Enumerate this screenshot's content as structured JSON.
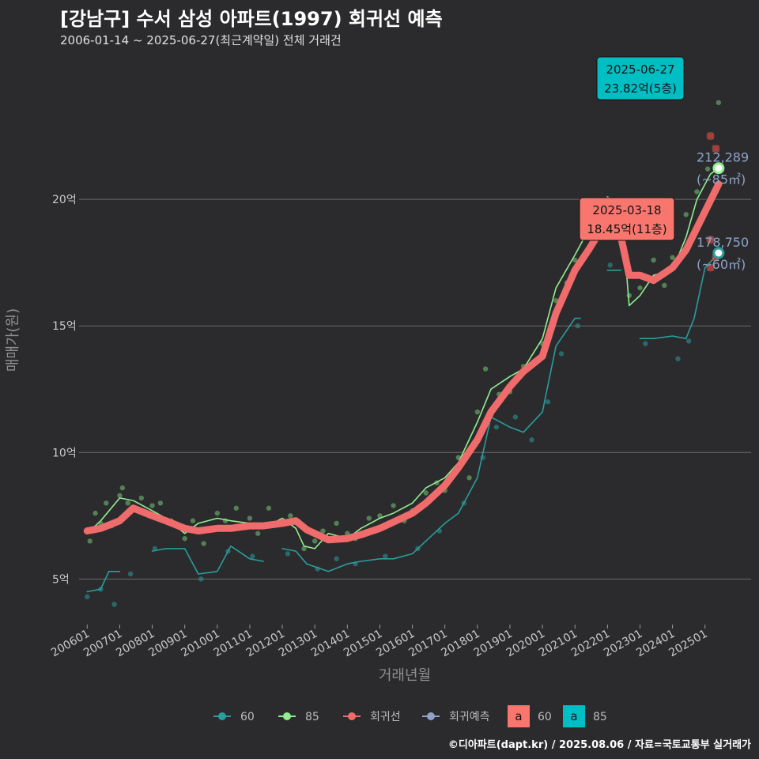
{
  "header": {
    "title": "[강남구] 수서 삼성 아파트(1997) 회귀선 예측",
    "subtitle": "2006-01-14 ~ 2025-06-27(최근계약일) 전체 거래건"
  },
  "caption": "©디아파트(dapt.kr) / 2025.08.06 / 자료=국토교통부 실거래가",
  "legend": {
    "items": [
      {
        "label": "60",
        "color": "#2a9d9d",
        "kind": "line"
      },
      {
        "label": "85",
        "color": "#90ee90",
        "kind": "line"
      },
      {
        "label": "회귀선",
        "color": "#f06b6b",
        "kind": "line"
      },
      {
        "label": "회귀예측",
        "color": "#8fa3c8",
        "kind": "line"
      }
    ],
    "fill_items": [
      {
        "glyph": "a",
        "label": "60",
        "color": "#f8766d"
      },
      {
        "glyph": "a",
        "label": "85",
        "color": "#00bfc4"
      }
    ]
  },
  "annotations": [
    {
      "date": "2025-06-27",
      "text": "23.82억(5층)",
      "color": "#00bfc4"
    },
    {
      "date": "2025-03-18",
      "text": "18.45억(11층)",
      "color": "#f8766d"
    }
  ],
  "end_labels": [
    {
      "value": "212,289",
      "unit": "(~85㎡)"
    },
    {
      "value": "178,750",
      "unit": "(~60㎡)"
    }
  ],
  "chart_data": {
    "type": "line",
    "xlabel": "거래년월",
    "ylabel": "매매가(원)",
    "x_range": [
      "2005-10",
      "2026-06"
    ],
    "ylim": [
      3.2,
      26
    ],
    "y_ticks": [
      {
        "v": 5,
        "label": "5억"
      },
      {
        "v": 10,
        "label": "10억"
      },
      {
        "v": 15,
        "label": "15억"
      },
      {
        "v": 20,
        "label": "20억"
      }
    ],
    "x_ticks": [
      "200601",
      "200701",
      "200801",
      "200901",
      "201001",
      "201101",
      "201201",
      "201301",
      "201401",
      "201501",
      "201601",
      "201701",
      "201801",
      "201901",
      "202001",
      "202101",
      "202201",
      "202301",
      "202401",
      "202501"
    ],
    "grid": true,
    "legend_position": "bottom",
    "series": [
      {
        "name": "회귀선",
        "color": "#f06b6b",
        "points": [
          [
            "2006-01",
            6.9
          ],
          [
            "2006-06",
            7.0
          ],
          [
            "2007-01",
            7.3
          ],
          [
            "2007-06",
            7.8
          ],
          [
            "2008-01",
            7.5
          ],
          [
            "2008-06",
            7.3
          ],
          [
            "2009-01",
            7.0
          ],
          [
            "2009-06",
            6.9
          ],
          [
            "2010-01",
            7.0
          ],
          [
            "2010-06",
            7.0
          ],
          [
            "2011-01",
            7.1
          ],
          [
            "2011-06",
            7.1
          ],
          [
            "2012-01",
            7.2
          ],
          [
            "2012-06",
            7.3
          ],
          [
            "2012-10",
            6.95
          ],
          [
            "2013-06",
            6.55
          ],
          [
            "2014-01",
            6.6
          ],
          [
            "2014-06",
            6.75
          ],
          [
            "2015-01",
            7.0
          ],
          [
            "2015-06",
            7.25
          ],
          [
            "2016-01",
            7.6
          ],
          [
            "2016-06",
            8.0
          ],
          [
            "2017-01",
            8.7
          ],
          [
            "2017-06",
            9.4
          ],
          [
            "2018-01",
            10.5
          ],
          [
            "2018-06",
            11.6
          ],
          [
            "2019-01",
            12.6
          ],
          [
            "2019-06",
            13.2
          ],
          [
            "2020-01",
            13.8
          ],
          [
            "2020-06",
            15.5
          ],
          [
            "2021-01",
            17.2
          ],
          [
            "2021-06",
            18.0
          ],
          [
            "2022-01",
            19.2
          ],
          [
            "2022-03",
            19.5
          ],
          [
            "2022-06",
            18.5
          ],
          [
            "2022-09",
            17.0
          ],
          [
            "2023-01",
            17.0
          ],
          [
            "2023-06",
            16.8
          ],
          [
            "2024-01",
            17.3
          ],
          [
            "2024-06",
            18.0
          ],
          [
            "2024-12",
            19.3
          ],
          [
            "2025-06",
            20.6
          ]
        ]
      },
      {
        "name": "85",
        "color": "#90ee90",
        "points": [
          [
            "2006-01",
            6.8
          ],
          [
            "2006-06",
            7.3
          ],
          [
            "2007-01",
            8.2
          ],
          [
            "2007-06",
            8.1
          ],
          [
            "2008-01",
            7.7
          ],
          [
            "2008-06",
            7.4
          ],
          [
            "2009-01",
            6.8
          ],
          [
            "2009-06",
            7.2
          ],
          [
            "2010-01",
            7.4
          ],
          [
            "2010-06",
            7.3
          ],
          [
            "2011-01",
            7.2
          ],
          [
            "2011-06",
            7.0
          ],
          [
            "2012-01",
            7.4
          ],
          [
            "2012-06",
            7.0
          ],
          [
            "2012-09",
            6.3
          ],
          [
            "2013-01",
            6.2
          ],
          [
            "2013-06",
            6.8
          ],
          [
            "2014-01",
            6.6
          ],
          [
            "2014-06",
            7.0
          ],
          [
            "2015-01",
            7.4
          ],
          [
            "2015-06",
            7.6
          ],
          [
            "2016-01",
            8.0
          ],
          [
            "2016-06",
            8.6
          ],
          [
            "2017-01",
            9.0
          ],
          [
            "2017-06",
            9.6
          ],
          [
            "2018-01",
            11.2
          ],
          [
            "2018-06",
            12.5
          ],
          [
            "2019-01",
            13.0
          ],
          [
            "2019-06",
            13.3
          ],
          [
            "2020-01",
            14.5
          ],
          [
            "2020-06",
            16.5
          ],
          [
            "2021-01",
            17.8
          ],
          [
            "2021-06",
            18.8
          ],
          [
            "2022-01",
            20.1
          ],
          [
            "2022-06",
            19.8
          ],
          [
            "2022-09",
            15.8
          ],
          [
            "2023-01",
            16.2
          ],
          [
            "2023-06",
            17.0
          ],
          [
            "2024-01",
            17.2
          ],
          [
            "2024-06",
            18.5
          ],
          [
            "2024-10",
            20.0
          ],
          [
            "2025-03",
            21.0
          ],
          [
            "2025-06",
            21.23
          ]
        ]
      },
      {
        "name": "60",
        "color": "#2a9d9d",
        "points": [
          [
            "2006-01",
            4.5
          ],
          [
            "2006-06",
            4.6
          ],
          [
            "2006-09",
            5.3
          ],
          [
            "2007-01",
            5.3
          ],
          [
            "2007-06",
            null
          ],
          [
            "2008-01",
            6.1
          ],
          [
            "2008-06",
            6.2
          ],
          [
            "2009-01",
            6.2
          ],
          [
            "2009-06",
            5.2
          ],
          [
            "2010-01",
            5.3
          ],
          [
            "2010-06",
            6.3
          ],
          [
            "2011-01",
            5.8
          ],
          [
            "2011-06",
            5.7
          ],
          [
            "2011-09",
            null
          ],
          [
            "2012-01",
            6.2
          ],
          [
            "2012-06",
            6.1
          ],
          [
            "2012-10",
            5.6
          ],
          [
            "2013-06",
            5.3
          ],
          [
            "2014-01",
            5.6
          ],
          [
            "2014-06",
            5.7
          ],
          [
            "2015-01",
            5.8
          ],
          [
            "2015-06",
            5.8
          ],
          [
            "2016-01",
            6.0
          ],
          [
            "2016-06",
            6.5
          ],
          [
            "2017-01",
            7.2
          ],
          [
            "2017-06",
            7.6
          ],
          [
            "2018-01",
            9.0
          ],
          [
            "2018-06",
            11.4
          ],
          [
            "2019-01",
            11.0
          ],
          [
            "2019-06",
            10.8
          ],
          [
            "2020-01",
            11.6
          ],
          [
            "2020-06",
            14.2
          ],
          [
            "2021-01",
            15.3
          ],
          [
            "2021-03",
            15.3
          ],
          [
            "2021-06",
            null
          ],
          [
            "2022-01",
            17.2
          ],
          [
            "2022-06",
            17.2
          ],
          [
            "2022-09",
            null
          ],
          [
            "2023-01",
            14.5
          ],
          [
            "2023-06",
            14.5
          ],
          [
            "2024-01",
            14.6
          ],
          [
            "2024-06",
            14.5
          ],
          [
            "2024-09",
            15.3
          ],
          [
            "2025-01",
            17.3
          ],
          [
            "2025-06",
            17.88
          ]
        ]
      }
    ],
    "scatter_85": [
      [
        "2006-02",
        6.5
      ],
      [
        "2006-04",
        7.6
      ],
      [
        "2006-06",
        7.2
      ],
      [
        "2006-08",
        8.0
      ],
      [
        "2006-10",
        7.1
      ],
      [
        "2007-01",
        8.3
      ],
      [
        "2007-02",
        8.6
      ],
      [
        "2007-04",
        8.0
      ],
      [
        "2007-06",
        7.8
      ],
      [
        "2007-09",
        8.2
      ],
      [
        "2008-01",
        7.9
      ],
      [
        "2008-04",
        8.0
      ],
      [
        "2008-08",
        7.3
      ],
      [
        "2009-01",
        6.6
      ],
      [
        "2009-04",
        7.3
      ],
      [
        "2009-08",
        6.4
      ],
      [
        "2010-01",
        7.6
      ],
      [
        "2010-04",
        7.3
      ],
      [
        "2010-08",
        7.8
      ],
      [
        "2011-01",
        7.4
      ],
      [
        "2011-04",
        6.8
      ],
      [
        "2011-08",
        7.8
      ],
      [
        "2012-01",
        7.2
      ],
      [
        "2012-04",
        7.5
      ],
      [
        "2012-09",
        6.2
      ],
      [
        "2013-01",
        6.5
      ],
      [
        "2013-04",
        6.9
      ],
      [
        "2013-09",
        7.2
      ],
      [
        "2014-01",
        6.8
      ],
      [
        "2014-04",
        6.6
      ],
      [
        "2014-09",
        7.4
      ],
      [
        "2015-01",
        7.5
      ],
      [
        "2015-06",
        7.9
      ],
      [
        "2015-10",
        7.3
      ],
      [
        "2016-01",
        7.7
      ],
      [
        "2016-06",
        8.4
      ],
      [
        "2016-10",
        8.8
      ],
      [
        "2017-01",
        8.5
      ],
      [
        "2017-06",
        9.8
      ],
      [
        "2017-10",
        9.0
      ],
      [
        "2018-01",
        11.6
      ],
      [
        "2018-04",
        13.3
      ],
      [
        "2018-09",
        12.3
      ],
      [
        "2019-01",
        12.4
      ],
      [
        "2019-06",
        13.4
      ],
      [
        "2019-10",
        13.6
      ],
      [
        "2020-01",
        14.3
      ],
      [
        "2020-06",
        16.0
      ],
      [
        "2020-10",
        16.7
      ],
      [
        "2021-01",
        17.6
      ],
      [
        "2021-06",
        18.5
      ],
      [
        "2021-10",
        19.0
      ],
      [
        "2022-01",
        20.0
      ],
      [
        "2022-04",
        19.2
      ],
      [
        "2022-09",
        16.2
      ],
      [
        "2023-01",
        16.5
      ],
      [
        "2023-06",
        17.6
      ],
      [
        "2023-10",
        16.6
      ],
      [
        "2024-01",
        17.7
      ],
      [
        "2024-06",
        19.4
      ],
      [
        "2024-10",
        20.3
      ],
      [
        "2025-02",
        21.2
      ],
      [
        "2025-06",
        23.82
      ]
    ],
    "scatter_60": [
      [
        "2006-01",
        4.3
      ],
      [
        "2006-06",
        4.6
      ],
      [
        "2006-11",
        4.0
      ],
      [
        "2007-05",
        5.2
      ],
      [
        "2008-02",
        6.2
      ],
      [
        "2009-07",
        5.0
      ],
      [
        "2010-05",
        6.1
      ],
      [
        "2011-02",
        5.9
      ],
      [
        "2012-03",
        6.0
      ],
      [
        "2013-02",
        5.4
      ],
      [
        "2013-09",
        5.8
      ],
      [
        "2014-04",
        5.6
      ],
      [
        "2015-03",
        5.9
      ],
      [
        "2016-03",
        6.2
      ],
      [
        "2016-11",
        6.9
      ],
      [
        "2017-08",
        8.0
      ],
      [
        "2018-03",
        9.8
      ],
      [
        "2018-08",
        11.0
      ],
      [
        "2019-03",
        11.4
      ],
      [
        "2019-09",
        10.5
      ],
      [
        "2020-03",
        12.0
      ],
      [
        "2020-08",
        13.9
      ],
      [
        "2021-02",
        15.0
      ],
      [
        "2022-02",
        17.4
      ],
      [
        "2023-03",
        14.3
      ],
      [
        "2024-03",
        13.7
      ],
      [
        "2024-07",
        14.4
      ],
      [
        "2025-03",
        18.45
      ]
    ],
    "predict_marks": [
      [
        "2025-03",
        22.5
      ],
      [
        "2025-05",
        22.0
      ],
      [
        "2025-03",
        18.4
      ],
      [
        "2025-03",
        17.3
      ],
      [
        "2025-05",
        17.7
      ]
    ],
    "end_points": [
      {
        "series": "85",
        "date": "2025-06",
        "value": 21.23
      },
      {
        "series": "60",
        "date": "2025-06",
        "value": 17.88
      }
    ]
  }
}
